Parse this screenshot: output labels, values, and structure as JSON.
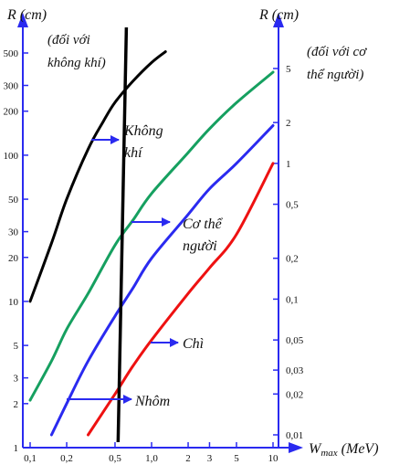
{
  "chart_data": {
    "type": "line",
    "left_axis_title": "R (cm)",
    "left_axis_note": [
      "(đối với",
      "không khí)"
    ],
    "right_axis_title": "R (cm)",
    "right_axis_note": [
      "(đối với cơ",
      "thể người)"
    ],
    "x_axis_title_main": "W",
    "x_axis_title_sub": "max",
    "x_axis_title_unit": " (MeV)",
    "x_scale": "log",
    "x_range": [
      0.1,
      10
    ],
    "x_ticks": [
      {
        "v": 0.1,
        "label": "0,1"
      },
      {
        "v": 0.2,
        "label": "0,2"
      },
      {
        "v": 0.5,
        "label": "0,5"
      },
      {
        "v": 1,
        "label": "1,0"
      },
      {
        "v": 2,
        "label": "2"
      },
      {
        "v": 3,
        "label": "3"
      },
      {
        "v": 5,
        "label": "5"
      },
      {
        "v": 10,
        "label": "10"
      }
    ],
    "left_scale": "log",
    "left_range": [
      1,
      500
    ],
    "left_ticks": [
      {
        "v": 1,
        "label": "1"
      },
      {
        "v": 2,
        "label": "2"
      },
      {
        "v": 3,
        "label": "3"
      },
      {
        "v": 5,
        "label": "5"
      },
      {
        "v": 10,
        "label": "10"
      },
      {
        "v": 20,
        "label": "20"
      },
      {
        "v": 30,
        "label": "30"
      },
      {
        "v": 50,
        "label": "50"
      },
      {
        "v": 100,
        "label": "100"
      },
      {
        "v": 200,
        "label": "200"
      },
      {
        "v": 300,
        "label": "300"
      },
      {
        "v": 500,
        "label": "500"
      }
    ],
    "right_scale": "log",
    "right_range": [
      0.01,
      5
    ],
    "right_ticks": [
      {
        "v": 0.01,
        "label": "0,01"
      },
      {
        "v": 0.02,
        "label": "0,02"
      },
      {
        "v": 0.03,
        "label": "0,03"
      },
      {
        "v": 0.05,
        "label": "0,05"
      },
      {
        "v": 0.1,
        "label": "0,1"
      },
      {
        "v": 0.2,
        "label": "0,2"
      },
      {
        "v": 0.5,
        "label": "0,5"
      },
      {
        "v": 1,
        "label": "1"
      },
      {
        "v": 2,
        "label": "2"
      },
      {
        "v": 5,
        "label": "5"
      }
    ],
    "series": [
      {
        "name": "Không khí",
        "label_lines": [
          "Không",
          "khí"
        ],
        "color": "#000000",
        "axis": "left",
        "x": [
          0.1,
          0.15,
          0.2,
          0.3,
          0.4,
          0.5,
          0.7,
          1.0,
          1.3
        ],
        "y": [
          10,
          25,
          50,
          110,
          170,
          230,
          320,
          430,
          510
        ]
      },
      {
        "name": "Cơ thể người",
        "label_lines": [
          "Cơ thể",
          "người"
        ],
        "color": "#16a060",
        "axis": "right",
        "x": [
          0.1,
          0.15,
          0.2,
          0.3,
          0.5,
          0.7,
          1,
          2,
          3,
          5,
          10
        ],
        "y": [
          0.018,
          0.035,
          0.06,
          0.11,
          0.25,
          0.38,
          0.6,
          1.2,
          1.8,
          2.8,
          4.7
        ]
      },
      {
        "name": "Nhôm",
        "label_lines": [
          "Nhôm"
        ],
        "color": "#2a2af0",
        "axis": "right",
        "x": [
          0.15,
          0.2,
          0.3,
          0.5,
          0.7,
          1,
          2,
          3,
          5,
          10
        ],
        "y": [
          0.01,
          0.017,
          0.035,
          0.075,
          0.12,
          0.2,
          0.42,
          0.65,
          1.0,
          1.9
        ]
      },
      {
        "name": "Chì",
        "label_lines": [
          "Chì"
        ],
        "color": "#ee1111",
        "axis": "right",
        "x": [
          0.3,
          0.5,
          0.7,
          1,
          2,
          3,
          5,
          10
        ],
        "y": [
          0.01,
          0.02,
          0.032,
          0.05,
          0.11,
          0.17,
          0.3,
          1.0
        ]
      }
    ],
    "divider_line": {
      "color": "#000000",
      "x_top": 0.62,
      "x_bottom": 0.53
    }
  }
}
